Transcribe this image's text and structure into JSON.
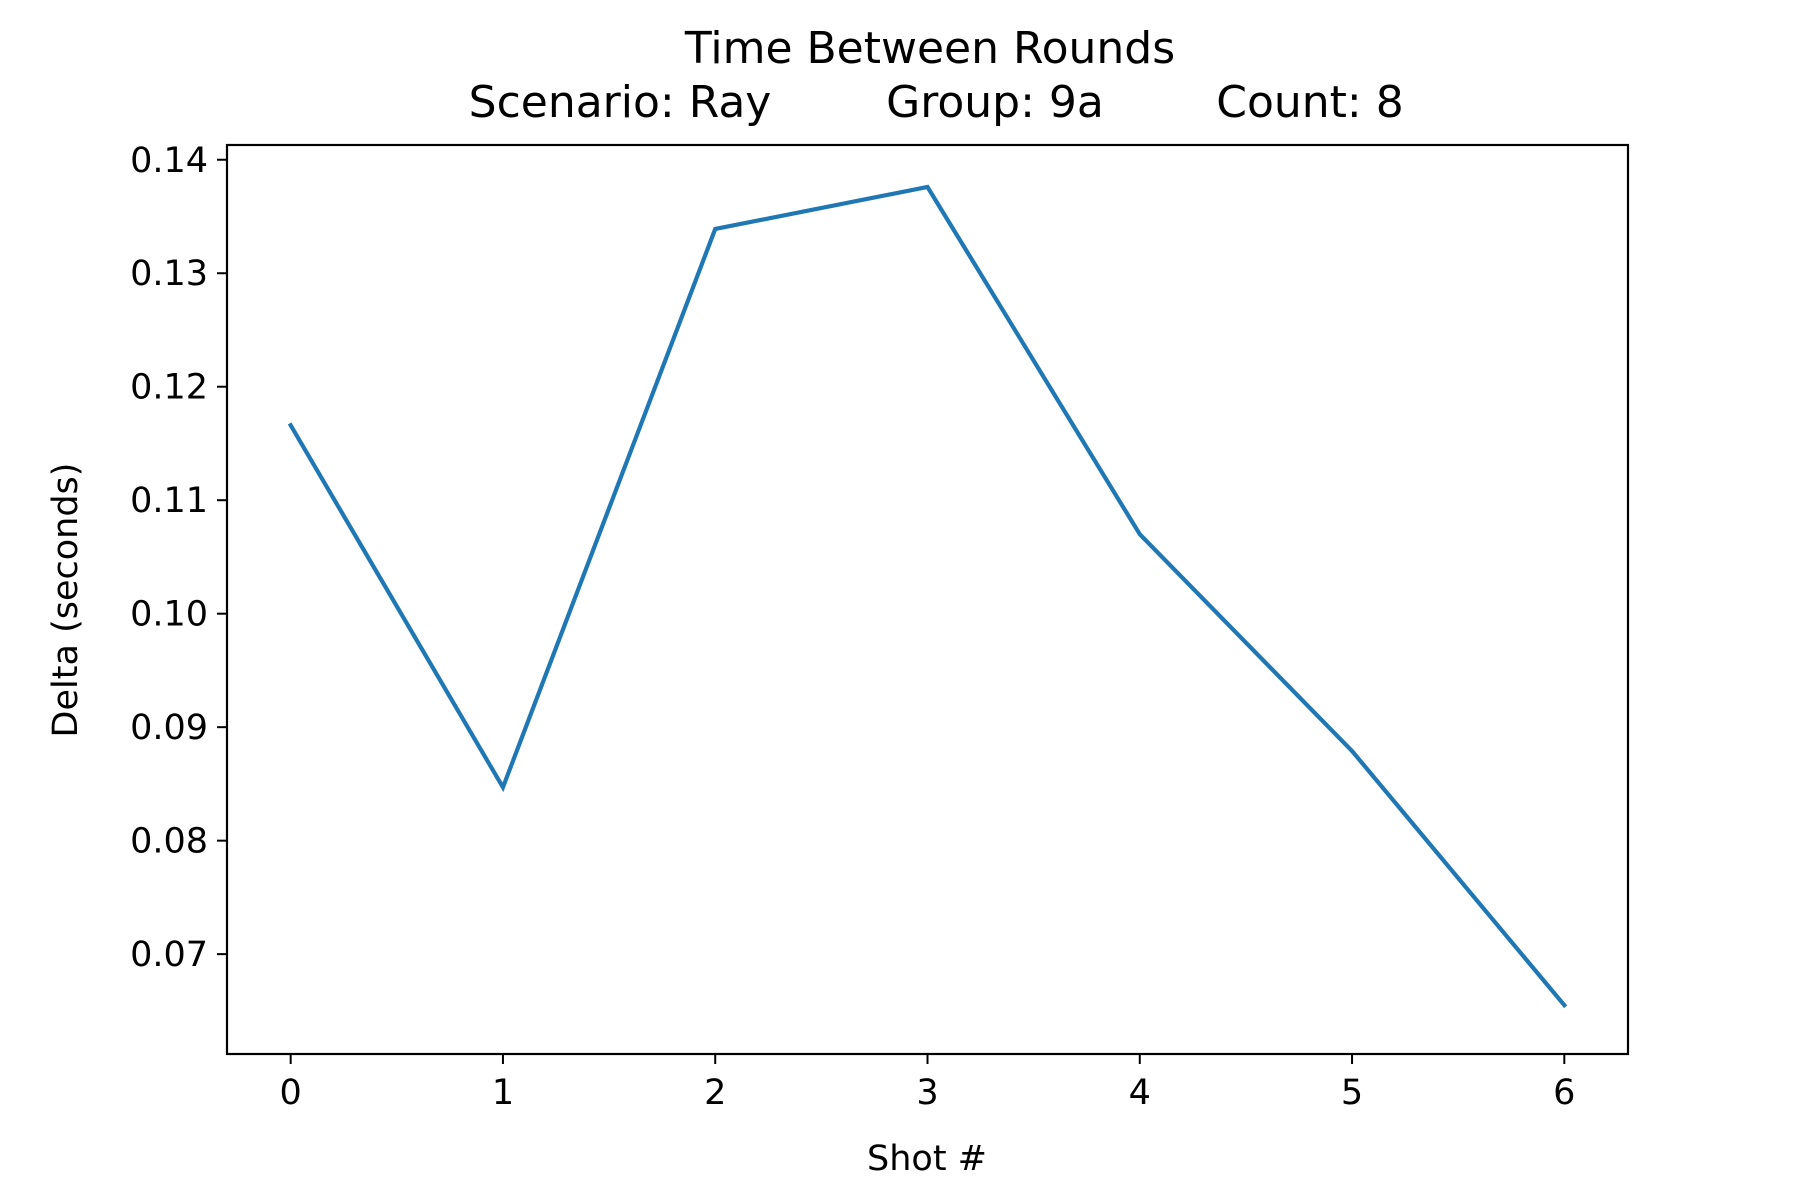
{
  "chart_data": {
    "type": "line",
    "title": "Time Between Rounds",
    "subtitle": {
      "scenario": "Scenario: Ray",
      "group": "Group: 9a",
      "count": "Count: 8"
    },
    "xlabel": "Shot #",
    "ylabel": "Delta (seconds)",
    "x": [
      0,
      1,
      2,
      3,
      4,
      5,
      6
    ],
    "series": [
      {
        "name": "delta",
        "values": [
          0.1166,
          0.0847,
          0.1339,
          0.1376,
          0.107,
          0.0879,
          0.0655
        ],
        "color": "#1f77b4"
      }
    ],
    "xlim": [
      -0.3,
      6.3
    ],
    "ylim": [
      0.0612,
      0.1413
    ],
    "xticks": [
      {
        "value": 0,
        "label": "0"
      },
      {
        "value": 1,
        "label": "1"
      },
      {
        "value": 2,
        "label": "2"
      },
      {
        "value": 3,
        "label": "3"
      },
      {
        "value": 4,
        "label": "4"
      },
      {
        "value": 5,
        "label": "5"
      },
      {
        "value": 6,
        "label": "6"
      }
    ],
    "yticks": [
      {
        "value": 0.07,
        "label": "0.07"
      },
      {
        "value": 0.08,
        "label": "0.08"
      },
      {
        "value": 0.09,
        "label": "0.09"
      },
      {
        "value": 0.1,
        "label": "0.10"
      },
      {
        "value": 0.11,
        "label": "0.11"
      },
      {
        "value": 0.12,
        "label": "0.12"
      },
      {
        "value": 0.13,
        "label": "0.13"
      },
      {
        "value": 0.14,
        "label": "0.14"
      }
    ],
    "grid": false,
    "legend": "none"
  }
}
